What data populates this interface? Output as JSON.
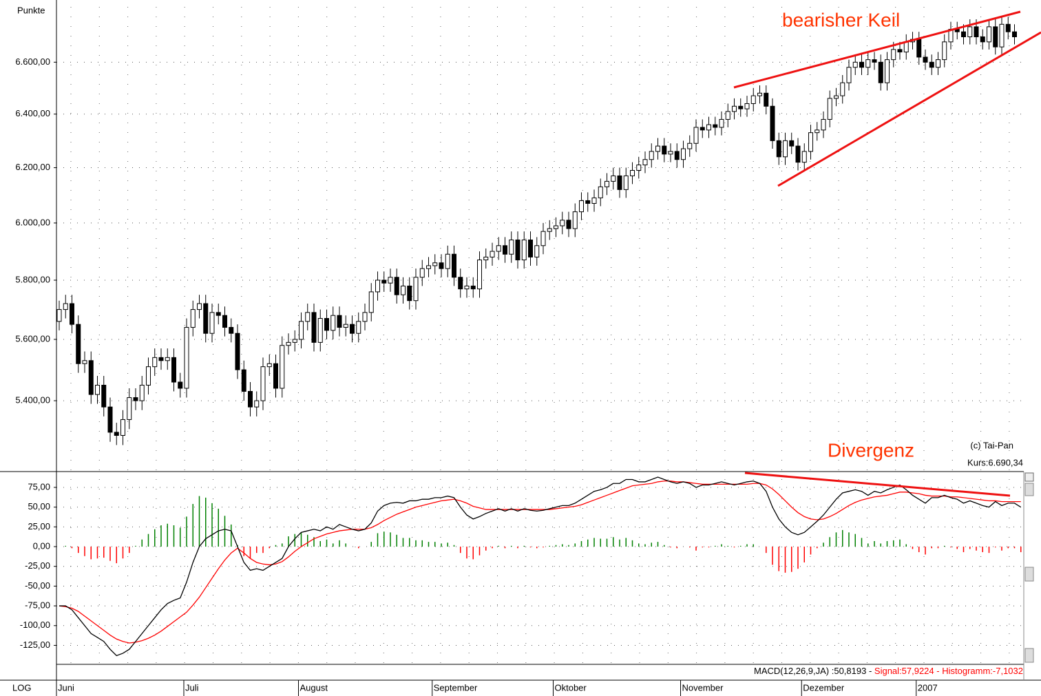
{
  "chart_data": [
    {
      "type": "candlestick",
      "ylabel": "Punkte",
      "scale_label": "LOG",
      "log": true,
      "grid": true,
      "up_color": "#ffffff",
      "down_color": "#000000",
      "annotations": [
        "bearisher Keil",
        "Divergenz",
        "(c) Tai-Pan",
        "Kurs:6.690,34"
      ],
      "ylim": [
        5180,
        6820
      ],
      "yticks": [
        {
          "value": 5400,
          "label": "5.400,00"
        },
        {
          "value": 5600,
          "label": "5.600,00"
        },
        {
          "value": 5800,
          "label": "5.800,00"
        },
        {
          "value": 6000,
          "label": "6.000,00"
        },
        {
          "value": 6200,
          "label": "6.200,00"
        },
        {
          "value": 6400,
          "label": "6.400,00"
        },
        {
          "value": 6600,
          "label": "6.600,00"
        }
      ],
      "categories": [
        "Juni",
        null,
        null,
        null,
        null,
        null,
        null,
        null,
        null,
        null,
        null,
        null,
        null,
        null,
        null,
        null,
        null,
        null,
        null,
        null,
        "Juli",
        null,
        null,
        null,
        null,
        null,
        null,
        null,
        null,
        null,
        null,
        null,
        null,
        null,
        null,
        null,
        null,
        null,
        "August",
        null,
        null,
        null,
        null,
        null,
        null,
        null,
        null,
        null,
        null,
        null,
        null,
        null,
        null,
        null,
        null,
        null,
        null,
        null,
        null,
        "September",
        null,
        null,
        null,
        null,
        null,
        null,
        null,
        null,
        null,
        null,
        null,
        null,
        null,
        null,
        null,
        null,
        null,
        null,
        "Oktober",
        null,
        null,
        null,
        null,
        null,
        null,
        null,
        null,
        null,
        null,
        null,
        null,
        null,
        null,
        null,
        null,
        null,
        null,
        null,
        "November",
        null,
        null,
        null,
        null,
        null,
        null,
        null,
        null,
        null,
        null,
        null,
        null,
        null,
        null,
        null,
        null,
        null,
        null,
        "Dezember",
        null,
        null,
        null,
        null,
        null,
        null,
        null,
        null,
        null,
        null,
        null,
        null,
        null,
        null,
        null,
        null,
        null,
        "2007",
        null,
        null,
        null,
        null,
        null,
        null,
        null,
        null,
        null,
        null,
        null,
        null,
        null,
        null,
        null
      ],
      "open": [
        5660,
        5700,
        5720,
        5650,
        5520,
        5530,
        5420,
        5450,
        5380,
        5300,
        5290,
        5340,
        5410,
        5400,
        5450,
        5510,
        5540,
        5530,
        5540,
        5460,
        5440,
        5640,
        5700,
        5720,
        5620,
        5690,
        5680,
        5640,
        5620,
        5500,
        5430,
        5380,
        5400,
        5510,
        5520,
        5440,
        5580,
        5590,
        5600,
        5660,
        5690,
        5590,
        5670,
        5630,
        5680,
        5640,
        5650,
        5620,
        5660,
        5690,
        5760,
        5800,
        5790,
        5810,
        5750,
        5780,
        5730,
        5810,
        5840,
        5850,
        5860,
        5840,
        5890,
        5810,
        5770,
        5780,
        5770,
        5870,
        5880,
        5900,
        5920,
        5890,
        5940,
        5870,
        5940,
        5880,
        5920,
        5970,
        5980,
        5990,
        6010,
        5980,
        6040,
        6080,
        6070,
        6090,
        6130,
        6150,
        6170,
        6120,
        6170,
        6190,
        6210,
        6230,
        6260,
        6280,
        6250,
        6260,
        6230,
        6270,
        6290,
        6350,
        6340,
        6360,
        6350,
        6380,
        6410,
        6430,
        6420,
        6440,
        6470,
        6480,
        6430,
        6300,
        6240,
        6300,
        6280,
        6220,
        6260,
        6330,
        6340,
        6380,
        6460,
        6470,
        6520,
        6580,
        6600,
        6580,
        6610,
        6600,
        6520,
        6610,
        6650,
        6640,
        6680,
        6690,
        6620,
        6600,
        6580,
        6610,
        6680,
        6730,
        6720,
        6700,
        6740,
        6700,
        6680,
        6740,
        6660,
        6750,
        6720
      ],
      "high": [
        5730,
        5750,
        5750,
        5680,
        5560,
        5560,
        5480,
        5480,
        5410,
        5330,
        5370,
        5440,
        5440,
        5480,
        5540,
        5570,
        5570,
        5570,
        5570,
        5490,
        5670,
        5730,
        5750,
        5750,
        5720,
        5720,
        5710,
        5670,
        5650,
        5530,
        5460,
        5430,
        5540,
        5550,
        5550,
        5610,
        5620,
        5630,
        5690,
        5720,
        5720,
        5700,
        5700,
        5710,
        5710,
        5680,
        5680,
        5690,
        5720,
        5790,
        5830,
        5830,
        5840,
        5840,
        5810,
        5810,
        5840,
        5870,
        5880,
        5890,
        5890,
        5920,
        5920,
        5840,
        5810,
        5810,
        5900,
        5910,
        5930,
        5950,
        5950,
        5970,
        5970,
        5970,
        5970,
        5950,
        6000,
        6010,
        6020,
        6040,
        6040,
        6070,
        6110,
        6110,
        6120,
        6160,
        6180,
        6200,
        6200,
        6200,
        6220,
        6240,
        6260,
        6290,
        6310,
        6310,
        6290,
        6290,
        6300,
        6320,
        6380,
        6380,
        6390,
        6390,
        6410,
        6440,
        6460,
        6460,
        6470,
        6500,
        6510,
        6510,
        6460,
        6330,
        6330,
        6330,
        6310,
        6290,
        6360,
        6370,
        6410,
        6490,
        6500,
        6550,
        6610,
        6630,
        6630,
        6640,
        6640,
        6630,
        6640,
        6680,
        6680,
        6710,
        6720,
        6720,
        6650,
        6630,
        6640,
        6710,
        6760,
        6760,
        6750,
        6770,
        6770,
        6730,
        6770,
        6770,
        6780,
        6780,
        6750
      ],
      "low": [
        5630,
        5670,
        5620,
        5490,
        5490,
        5390,
        5390,
        5350,
        5270,
        5260,
        5260,
        5310,
        5370,
        5370,
        5420,
        5480,
        5500,
        5500,
        5430,
        5410,
        5410,
        5610,
        5670,
        5590,
        5590,
        5650,
        5610,
        5590,
        5470,
        5400,
        5350,
        5350,
        5370,
        5480,
        5410,
        5410,
        5550,
        5560,
        5570,
        5630,
        5560,
        5560,
        5600,
        5600,
        5610,
        5610,
        5590,
        5590,
        5630,
        5660,
        5730,
        5760,
        5760,
        5720,
        5720,
        5700,
        5700,
        5780,
        5810,
        5820,
        5810,
        5810,
        5780,
        5740,
        5740,
        5740,
        5740,
        5840,
        5850,
        5870,
        5860,
        5860,
        5840,
        5840,
        5850,
        5850,
        5890,
        5940,
        5950,
        5960,
        5950,
        5950,
        6010,
        6040,
        6040,
        6060,
        6100,
        6120,
        6090,
        6090,
        6140,
        6160,
        6180,
        6200,
        6230,
        6220,
        6220,
        6200,
        6200,
        6240,
        6260,
        6310,
        6310,
        6320,
        6320,
        6350,
        6380,
        6390,
        6390,
        6410,
        6440,
        6400,
        6270,
        6210,
        6210,
        6250,
        6190,
        6190,
        6230,
        6300,
        6310,
        6350,
        6430,
        6440,
        6490,
        6550,
        6550,
        6550,
        6570,
        6490,
        6490,
        6580,
        6610,
        6610,
        6650,
        6590,
        6570,
        6550,
        6550,
        6580,
        6650,
        6690,
        6670,
        6670,
        6670,
        6650,
        6650,
        6630,
        6630,
        6690,
        6670
      ],
      "close": [
        5700,
        5720,
        5650,
        5520,
        5530,
        5420,
        5450,
        5380,
        5300,
        5290,
        5340,
        5410,
        5400,
        5450,
        5510,
        5540,
        5530,
        5540,
        5460,
        5440,
        5640,
        5700,
        5720,
        5620,
        5690,
        5680,
        5640,
        5620,
        5500,
        5430,
        5380,
        5400,
        5510,
        5520,
        5440,
        5580,
        5590,
        5600,
        5660,
        5690,
        5590,
        5670,
        5630,
        5680,
        5640,
        5650,
        5620,
        5660,
        5690,
        5760,
        5800,
        5790,
        5810,
        5750,
        5780,
        5730,
        5810,
        5840,
        5850,
        5860,
        5840,
        5890,
        5810,
        5770,
        5780,
        5770,
        5870,
        5880,
        5900,
        5920,
        5890,
        5940,
        5870,
        5940,
        5880,
        5920,
        5970,
        5980,
        5990,
        6010,
        5980,
        6040,
        6080,
        6070,
        6090,
        6130,
        6150,
        6170,
        6120,
        6170,
        6190,
        6210,
        6230,
        6260,
        6280,
        6250,
        6260,
        6230,
        6270,
        6290,
        6350,
        6340,
        6360,
        6350,
        6380,
        6410,
        6430,
        6420,
        6440,
        6470,
        6480,
        6430,
        6300,
        6240,
        6300,
        6280,
        6220,
        6260,
        6330,
        6340,
        6380,
        6460,
        6470,
        6520,
        6580,
        6600,
        6580,
        6610,
        6600,
        6520,
        6610,
        6650,
        6640,
        6680,
        6690,
        6620,
        6600,
        6580,
        6610,
        6680,
        6730,
        6720,
        6700,
        6740,
        6700,
        6680,
        6740,
        6660,
        6750,
        6720,
        6700
      ]
    },
    {
      "type": "macd",
      "grid": true,
      "legend": [
        "MACD(12,26,9,JA) :50,8193 -",
        "Signal:57,9224 -",
        "Histogramm:-7,1032"
      ],
      "ylim": [
        -149,
        95
      ],
      "yticks": [
        {
          "value": -125,
          "label": "-125,00"
        },
        {
          "value": -100,
          "label": "-100,00"
        },
        {
          "value": -75,
          "label": "-75,00"
        },
        {
          "value": -50,
          "label": "-50,00"
        },
        {
          "value": -25,
          "label": "-25,00"
        },
        {
          "value": 0,
          "label": "0,00"
        },
        {
          "value": 25,
          "label": "25,00"
        },
        {
          "value": 50,
          "label": "50,00"
        },
        {
          "value": 75,
          "label": "75,00"
        }
      ],
      "series": [
        {
          "color": "#000000",
          "values": [
            -75,
            -75,
            -80,
            -90,
            -100,
            -110,
            -115,
            -120,
            -130,
            -138,
            -135,
            -130,
            -120,
            -110,
            -100,
            -90,
            -80,
            -72,
            -68,
            -65,
            -45,
            -20,
            0,
            10,
            15,
            20,
            22,
            20,
            0,
            -20,
            -30,
            -28,
            -30,
            -25,
            -20,
            -15,
            0,
            10,
            18,
            20,
            22,
            20,
            25,
            22,
            28,
            25,
            22,
            20,
            22,
            30,
            45,
            52,
            55,
            56,
            55,
            58,
            58,
            60,
            60,
            62,
            62,
            64,
            62,
            50,
            40,
            35,
            38,
            42,
            45,
            48,
            45,
            48,
            45,
            48,
            46,
            45,
            46,
            48,
            50,
            52,
            52,
            55,
            60,
            65,
            70,
            72,
            75,
            80,
            80,
            85,
            85,
            82,
            82,
            85,
            88,
            85,
            82,
            80,
            82,
            80,
            75,
            78,
            78,
            80,
            82,
            80,
            78,
            80,
            82,
            83,
            80,
            70,
            50,
            35,
            25,
            18,
            15,
            18,
            25,
            32,
            40,
            50,
            60,
            68,
            70,
            72,
            70,
            65,
            70,
            68,
            72,
            75,
            78,
            72,
            65,
            60,
            55,
            62,
            62,
            65,
            62,
            60,
            55,
            58,
            55,
            52,
            50,
            57,
            52,
            55,
            55,
            50
          ]
        },
        {
          "color": "#ff0000",
          "values": [
            -75,
            -76,
            -78,
            -82,
            -88,
            -94,
            -100,
            -106,
            -112,
            -117,
            -120,
            -122,
            -121,
            -119,
            -116,
            -112,
            -107,
            -101,
            -95,
            -89,
            -83,
            -74,
            -64,
            -52,
            -40,
            -28,
            -17,
            -8,
            -2,
            -8,
            -15,
            -20,
            -22,
            -23,
            -22,
            -19,
            -13,
            -6,
            0,
            5,
            10,
            13,
            16,
            18,
            20,
            21,
            22,
            22,
            22,
            24,
            28,
            33,
            37,
            41,
            44,
            47,
            50,
            52,
            54,
            56,
            58,
            59,
            60,
            58,
            55,
            51,
            49,
            47,
            47,
            47,
            47,
            47,
            47,
            47,
            47,
            47,
            47,
            47,
            48,
            49,
            50,
            51,
            53,
            56,
            59,
            62,
            65,
            68,
            71,
            74,
            77,
            78,
            79,
            80,
            82,
            83,
            83,
            82,
            82,
            81,
            80,
            79,
            79,
            79,
            79,
            79,
            79,
            79,
            79,
            80,
            80,
            78,
            73,
            66,
            58,
            50,
            43,
            38,
            35,
            34,
            35,
            38,
            42,
            47,
            52,
            56,
            59,
            61,
            63,
            64,
            65,
            67,
            69,
            69,
            68,
            67,
            65,
            64,
            64,
            64,
            63,
            63,
            62,
            61,
            60,
            59,
            58,
            58,
            57,
            57,
            57,
            57
          ]
        }
      ],
      "histogram": {
        "positive_color": "#008000",
        "negative_color": "#ff0000",
        "values": [
          0,
          1,
          -2,
          -8,
          -12,
          -16,
          -15,
          -14,
          -18,
          -21,
          -15,
          -8,
          1,
          9,
          16,
          22,
          27,
          29,
          27,
          24,
          38,
          54,
          64,
          62,
          55,
          48,
          39,
          28,
          2,
          -12,
          -15,
          -8,
          -8,
          -2,
          2,
          4,
          13,
          16,
          18,
          15,
          12,
          7,
          9,
          4,
          8,
          4,
          0,
          -2,
          0,
          6,
          17,
          19,
          18,
          15,
          11,
          11,
          8,
          8,
          6,
          6,
          4,
          5,
          2,
          -8,
          -15,
          -16,
          -11,
          -5,
          -2,
          1,
          -2,
          1,
          -2,
          1,
          -1,
          -2,
          -1,
          1,
          2,
          3,
          2,
          4,
          7,
          9,
          11,
          10,
          10,
          12,
          9,
          11,
          8,
          4,
          3,
          5,
          6,
          2,
          -1,
          -2,
          0,
          -1,
          -5,
          -1,
          -1,
          1,
          3,
          1,
          -1,
          1,
          3,
          3,
          0,
          -8,
          -23,
          -31,
          -33,
          -32,
          -28,
          -20,
          -10,
          -2,
          5,
          12,
          18,
          21,
          18,
          16,
          11,
          4,
          7,
          4,
          7,
          8,
          9,
          3,
          -3,
          -7,
          -10,
          -2,
          -2,
          1,
          -1,
          -3,
          -7,
          -3,
          -5,
          -7,
          -8,
          -1,
          -5,
          -2,
          -2,
          -7
        ]
      }
    }
  ]
}
